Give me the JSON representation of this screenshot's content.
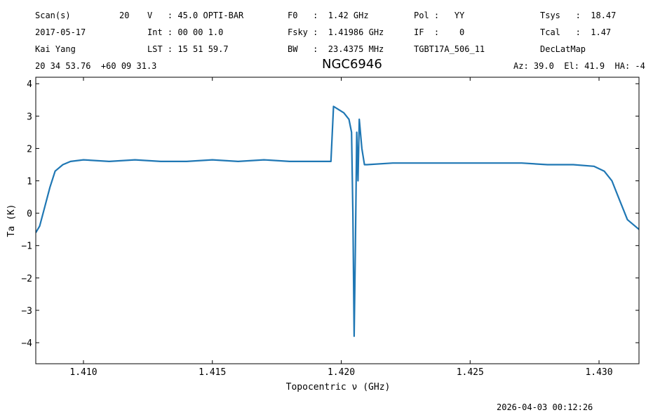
{
  "header": {
    "col1": [
      "Scan(s)",
      "2017-05-17",
      "Kai Yang"
    ],
    "scan_number": "20",
    "col2": [
      "V   : 45.0 OPTI-BAR",
      "Int : 00 00 1.0",
      "LST : 15 51 59.7"
    ],
    "col3": [
      "F0   :  1.42 GHz",
      "Fsky :  1.41986 GHz",
      "BW   :  23.4375 MHz"
    ],
    "col4": [
      "Pol :   YY",
      "IF  :    0",
      "TGBT17A_506_11"
    ],
    "col5": [
      "Tsys   :  18.47",
      "Tcal   :  1.47",
      "DecLatMap"
    ],
    "coords": "20 34 53.76  +60 09 31.3",
    "azel": "Az: 39.0  El: 41.9  HA: -4"
  },
  "footer": {
    "timestamp": "2026-04-03 00:12:26"
  },
  "colors": {
    "series": "#1f77b4"
  },
  "chart_data": {
    "type": "line",
    "title": "NGC6946",
    "xlabel": "Topocentric ν (GHz)",
    "ylabel": "Ta (K)",
    "xlim": [
      1.40815,
      1.43155
    ],
    "ylim": [
      -4.65,
      4.2
    ],
    "xticks": [
      1.41,
      1.415,
      1.42,
      1.425,
      1.43
    ],
    "xtick_labels": [
      "1.410",
      "1.415",
      "1.420",
      "1.425",
      "1.430"
    ],
    "yticks": [
      -4,
      -3,
      -2,
      -1,
      0,
      1,
      2,
      3,
      4
    ],
    "ytick_labels": [
      "−4",
      "−3",
      "−2",
      "−1",
      "0",
      "1",
      "2",
      "3",
      "4"
    ],
    "grid": false,
    "series": [
      {
        "x": [
          1.40815,
          1.4083,
          1.4085,
          1.4087,
          1.4089,
          1.4092,
          1.4095,
          1.41,
          1.411,
          1.412,
          1.413,
          1.414,
          1.415,
          1.416,
          1.417,
          1.418,
          1.419,
          1.4196,
          1.4197,
          1.4199,
          1.4201,
          1.4203,
          1.4204,
          1.42045,
          1.4205,
          1.42055,
          1.4206,
          1.42065,
          1.4207,
          1.4208,
          1.4209,
          1.421,
          1.422,
          1.423,
          1.424,
          1.425,
          1.426,
          1.427,
          1.428,
          1.429,
          1.4298,
          1.4302,
          1.4305,
          1.4308,
          1.4311,
          1.43155
        ],
        "y": [
          -0.6,
          -0.4,
          0.2,
          0.8,
          1.3,
          1.5,
          1.6,
          1.65,
          1.6,
          1.65,
          1.6,
          1.6,
          1.65,
          1.6,
          1.65,
          1.6,
          1.6,
          1.6,
          3.3,
          3.2,
          3.1,
          2.9,
          2.5,
          0.0,
          -3.8,
          -1.0,
          2.5,
          1.0,
          2.9,
          2.0,
          1.5,
          1.5,
          1.55,
          1.55,
          1.55,
          1.55,
          1.55,
          1.55,
          1.5,
          1.5,
          1.45,
          1.3,
          1.0,
          0.4,
          -0.2,
          -0.5
        ]
      }
    ]
  }
}
